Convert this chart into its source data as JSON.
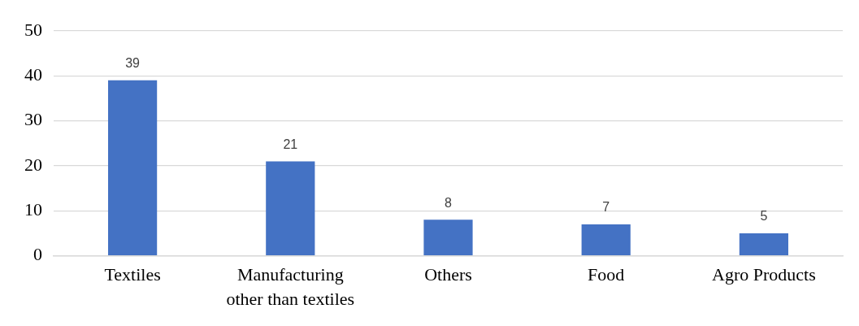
{
  "chart_data": {
    "type": "bar",
    "categories": [
      "Textiles",
      "Manufacturing other than textiles",
      "Others",
      "Food",
      "Agro Products"
    ],
    "values": [
      39,
      21,
      8,
      7,
      5
    ],
    "color": "#4472c4",
    "ylim": [
      0,
      50
    ],
    "yticks": [
      0,
      10,
      20,
      30,
      40,
      50
    ],
    "grid": "y",
    "data_labels": true
  }
}
